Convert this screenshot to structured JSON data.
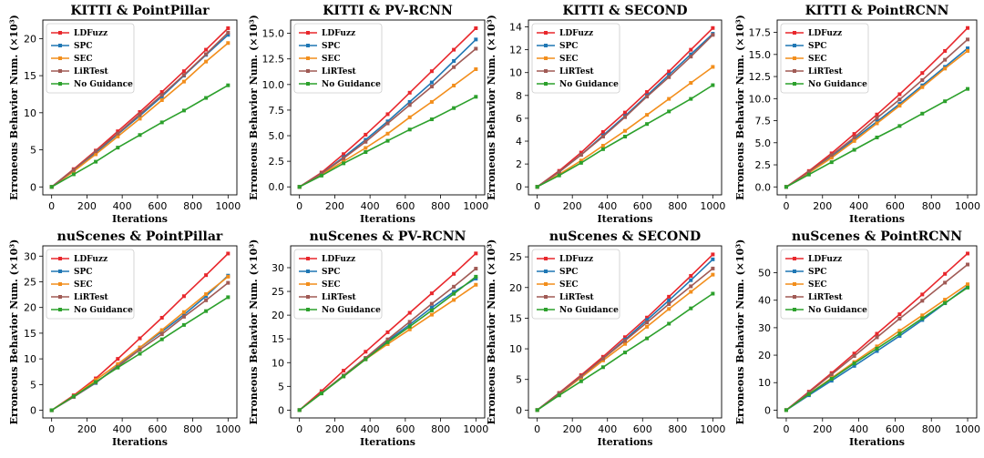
{
  "series_names": [
    "LDFuzz",
    "SPC",
    "SEC",
    "LiRTest",
    "No Guidance"
  ],
  "series_colors": [
    "#e8272c",
    "#1f77b4",
    "#f28e1c",
    "#a05a55",
    "#2ca02c"
  ],
  "chart_data": [
    {
      "type": "line",
      "title": "KITTI & PointPillar",
      "xlabel": "Iterations",
      "ylabel": "Erroneous Behavior Num. (×10³)",
      "x": [
        0,
        125,
        250,
        375,
        500,
        625,
        750,
        875,
        1000
      ],
      "xticks": [
        0,
        200,
        400,
        600,
        800,
        1000
      ],
      "xlim": [
        -50,
        1050
      ],
      "ylim": [
        -1.07,
        22.5
      ],
      "yticks": [
        0,
        5,
        10,
        15,
        20
      ],
      "legend": "top-left",
      "series": [
        {
          "name": "LDFuzz",
          "values": [
            0,
            2.4,
            4.9,
            7.5,
            10.1,
            12.8,
            15.6,
            18.5,
            21.4
          ]
        },
        {
          "name": "SPC",
          "values": [
            0,
            2.3,
            4.6,
            7.1,
            9.6,
            12.2,
            15.0,
            17.8,
            20.5
          ]
        },
        {
          "name": "SEC",
          "values": [
            0,
            2.1,
            4.4,
            6.8,
            9.2,
            11.7,
            14.2,
            16.9,
            19.4
          ]
        },
        {
          "name": "LiRTest",
          "values": [
            0,
            2.3,
            4.8,
            7.2,
            9.8,
            12.4,
            15.1,
            17.9,
            20.8
          ]
        },
        {
          "name": "No Guidance",
          "values": [
            0,
            1.7,
            3.4,
            5.3,
            7.0,
            8.7,
            10.3,
            12.0,
            13.7
          ]
        }
      ]
    },
    {
      "type": "line",
      "title": "KITTI & PV-RCNN",
      "xlabel": "Iterations",
      "ylabel": "Erroneous Behavior Num. (×10³)",
      "x": [
        0,
        125,
        250,
        375,
        500,
        625,
        750,
        875,
        1000
      ],
      "xticks": [
        0,
        200,
        400,
        600,
        800,
        1000
      ],
      "xlim": [
        -50,
        1050
      ],
      "ylim": [
        -0.78,
        16.3
      ],
      "yticks": [
        0.0,
        2.5,
        5.0,
        7.5,
        10.0,
        12.5,
        15.0
      ],
      "legend": "top-left",
      "series": [
        {
          "name": "LDFuzz",
          "values": [
            0,
            1.4,
            3.2,
            5.1,
            7.1,
            9.2,
            11.3,
            13.4,
            15.5
          ]
        },
        {
          "name": "SPC",
          "values": [
            0,
            1.3,
            2.9,
            4.6,
            6.4,
            8.3,
            10.2,
            12.3,
            14.4
          ]
        },
        {
          "name": "SEC",
          "values": [
            0,
            1.2,
            2.5,
            3.8,
            5.2,
            6.8,
            8.3,
            9.9,
            11.5
          ]
        },
        {
          "name": "LiRTest",
          "values": [
            0,
            1.3,
            2.8,
            4.4,
            6.2,
            8.0,
            9.8,
            11.7,
            13.5
          ]
        },
        {
          "name": "No Guidance",
          "values": [
            0,
            1.1,
            2.3,
            3.4,
            4.5,
            5.6,
            6.6,
            7.7,
            8.8
          ]
        }
      ]
    },
    {
      "type": "line",
      "title": "KITTI & SECOND",
      "xlabel": "Iterations",
      "ylabel": "Erroneous Behavior Num. (×10³)",
      "x": [
        0,
        125,
        250,
        375,
        500,
        625,
        750,
        875,
        1000
      ],
      "xticks": [
        0,
        200,
        400,
        600,
        800,
        1000
      ],
      "xlim": [
        -50,
        1050
      ],
      "ylim": [
        -0.7,
        14.6
      ],
      "yticks": [
        0,
        2,
        4,
        6,
        8,
        10,
        12,
        14
      ],
      "legend": "top-left",
      "series": [
        {
          "name": "LDFuzz",
          "values": [
            0,
            1.4,
            3.0,
            4.8,
            6.5,
            8.3,
            10.1,
            12.0,
            13.9
          ]
        },
        {
          "name": "SPC",
          "values": [
            0,
            1.3,
            2.8,
            4.5,
            6.2,
            8.0,
            9.8,
            11.6,
            13.4
          ]
        },
        {
          "name": "SEC",
          "values": [
            0,
            1.1,
            2.3,
            3.6,
            4.9,
            6.3,
            7.7,
            9.1,
            10.5
          ]
        },
        {
          "name": "LiRTest",
          "values": [
            0,
            1.3,
            2.8,
            4.4,
            6.1,
            7.9,
            9.6,
            11.4,
            13.3
          ]
        },
        {
          "name": "No Guidance",
          "values": [
            0,
            1.0,
            2.1,
            3.3,
            4.4,
            5.5,
            6.6,
            7.7,
            8.9
          ]
        }
      ]
    },
    {
      "type": "line",
      "title": "KITTI & PointRCNN",
      "xlabel": "Iterations",
      "ylabel": "Erroneous Behavior Num. (×10³)",
      "x": [
        0,
        125,
        250,
        375,
        500,
        625,
        750,
        875,
        1000
      ],
      "xticks": [
        0,
        200,
        400,
        600,
        800,
        1000
      ],
      "xlim": [
        -50,
        1050
      ],
      "ylim": [
        -0.9,
        18.9
      ],
      "yticks": [
        0.0,
        2.5,
        5.0,
        7.5,
        10.0,
        12.5,
        15.0,
        17.5
      ],
      "legend": "top-left",
      "series": [
        {
          "name": "LDFuzz",
          "values": [
            0,
            1.8,
            3.8,
            6.0,
            8.2,
            10.5,
            12.9,
            15.4,
            18.0
          ]
        },
        {
          "name": "SPC",
          "values": [
            0,
            1.6,
            3.4,
            5.4,
            7.4,
            9.4,
            11.5,
            13.6,
            15.7
          ]
        },
        {
          "name": "SEC",
          "values": [
            0,
            1.6,
            3.3,
            5.2,
            7.2,
            9.2,
            11.3,
            13.4,
            15.4
          ]
        },
        {
          "name": "LiRTest",
          "values": [
            0,
            1.7,
            3.6,
            5.6,
            7.8,
            9.9,
            12.1,
            14.4,
            16.7
          ]
        },
        {
          "name": "No Guidance",
          "values": [
            0,
            1.4,
            2.8,
            4.2,
            5.6,
            6.9,
            8.3,
            9.7,
            11.1
          ]
        }
      ]
    },
    {
      "type": "line",
      "title": "nuScenes & PointPillar",
      "xlabel": "Iterations",
      "ylabel": "Erroneous Behavior Num. (×10³)",
      "x": [
        0,
        125,
        250,
        375,
        500,
        625,
        750,
        875,
        1000
      ],
      "xticks": [
        0,
        200,
        400,
        600,
        800,
        1000
      ],
      "xlim": [
        -50,
        1050
      ],
      "ylim": [
        -1.5,
        32.0
      ],
      "yticks": [
        0,
        5,
        10,
        15,
        20,
        25,
        30
      ],
      "legend": "top-left",
      "series": [
        {
          "name": "LDFuzz",
          "values": [
            0,
            2.9,
            6.2,
            10.0,
            14.0,
            18.0,
            22.2,
            26.3,
            30.5
          ]
        },
        {
          "name": "SPC",
          "values": [
            0,
            2.6,
            5.3,
            8.7,
            12.2,
            15.3,
            18.6,
            22.2,
            26.2
          ]
        },
        {
          "name": "SEC",
          "values": [
            0,
            2.7,
            5.9,
            9.0,
            12.2,
            15.6,
            19.1,
            22.6,
            26.0
          ]
        },
        {
          "name": "LiRTest",
          "values": [
            0,
            2.6,
            5.4,
            8.5,
            11.8,
            14.8,
            18.2,
            21.4,
            24.8
          ]
        },
        {
          "name": "No Guidance",
          "values": [
            0,
            2.7,
            5.5,
            8.3,
            11.0,
            13.8,
            16.6,
            19.3,
            22.0
          ]
        }
      ]
    },
    {
      "type": "line",
      "title": "nuScenes & PV-RCNN",
      "xlabel": "Iterations",
      "ylabel": "Erroneous Behavior Num. (×10³)",
      "x": [
        0,
        125,
        250,
        375,
        500,
        625,
        750,
        875,
        1000
      ],
      "xticks": [
        0,
        200,
        400,
        600,
        800,
        1000
      ],
      "xlim": [
        -50,
        1050
      ],
      "ylim": [
        -1.65,
        34.6
      ],
      "yticks": [
        0,
        5,
        10,
        15,
        20,
        25,
        30
      ],
      "legend": "top-left",
      "series": [
        {
          "name": "LDFuzz",
          "values": [
            0,
            4.0,
            8.3,
            12.3,
            16.4,
            20.5,
            24.6,
            28.7,
            33.0
          ]
        },
        {
          "name": "SPC",
          "values": [
            0,
            3.6,
            7.2,
            10.9,
            14.6,
            18.0,
            21.6,
            24.9,
            27.7
          ]
        },
        {
          "name": "SEC",
          "values": [
            0,
            3.6,
            7.1,
            10.7,
            13.9,
            17.0,
            20.1,
            23.2,
            26.4
          ]
        },
        {
          "name": "LiRTest",
          "values": [
            0,
            3.6,
            7.3,
            11.0,
            14.9,
            18.6,
            22.4,
            26.0,
            29.8
          ]
        },
        {
          "name": "No Guidance",
          "values": [
            0,
            3.5,
            7.1,
            10.7,
            14.3,
            17.6,
            21.0,
            24.5,
            28.1
          ]
        }
      ]
    },
    {
      "type": "line",
      "title": "nuScenes & SECOND",
      "xlabel": "Iterations",
      "ylabel": "Erroneous Behavior Num. (×10³)",
      "x": [
        0,
        125,
        250,
        375,
        500,
        625,
        750,
        875,
        1000
      ],
      "xticks": [
        0,
        200,
        400,
        600,
        800,
        1000
      ],
      "xlim": [
        -50,
        1050
      ],
      "ylim": [
        -1.28,
        26.8
      ],
      "yticks": [
        0,
        5,
        10,
        15,
        20,
        25
      ],
      "legend": "top-left",
      "series": [
        {
          "name": "LDFuzz",
          "values": [
            0,
            2.8,
            5.7,
            8.7,
            11.9,
            15.1,
            18.5,
            21.9,
            25.4
          ]
        },
        {
          "name": "SPC",
          "values": [
            0,
            2.7,
            5.5,
            8.4,
            11.5,
            14.7,
            17.9,
            21.2,
            24.6
          ]
        },
        {
          "name": "SEC",
          "values": [
            0,
            2.6,
            5.3,
            8.1,
            10.8,
            13.6,
            16.5,
            19.3,
            22.1
          ]
        },
        {
          "name": "LiRTest",
          "values": [
            0,
            2.7,
            5.5,
            8.4,
            11.3,
            14.3,
            17.3,
            20.2,
            23.1
          ]
        },
        {
          "name": "No Guidance",
          "values": [
            0,
            2.4,
            4.7,
            7.0,
            9.4,
            11.7,
            14.1,
            16.6,
            19.0
          ]
        }
      ]
    },
    {
      "type": "line",
      "title": "nuScenes & PointRCNN",
      "xlabel": "Iterations",
      "ylabel": "Erroneous Behavior Num. (×10³)",
      "x": [
        0,
        125,
        250,
        375,
        500,
        625,
        750,
        875,
        1000
      ],
      "xticks": [
        0,
        200,
        400,
        600,
        800,
        1000
      ],
      "xlim": [
        -50,
        1050
      ],
      "ylim": [
        -2.85,
        59.8
      ],
      "yticks": [
        0,
        10,
        20,
        30,
        40,
        50
      ],
      "legend": "top-left",
      "series": [
        {
          "name": "LDFuzz",
          "values": [
            0,
            6.7,
            13.5,
            20.6,
            27.8,
            34.9,
            42.1,
            49.6,
            57.0
          ]
        },
        {
          "name": "SPC",
          "values": [
            0,
            5.4,
            10.7,
            16.1,
            21.5,
            27.0,
            32.8,
            38.9,
            45.0
          ]
        },
        {
          "name": "SEC",
          "values": [
            0,
            5.8,
            11.7,
            17.5,
            23.2,
            28.9,
            34.5,
            40.2,
            45.8
          ]
        },
        {
          "name": "LiRTest",
          "values": [
            0,
            6.4,
            13.0,
            19.7,
            26.5,
            33.3,
            39.8,
            46.4,
            53.0
          ]
        },
        {
          "name": "No Guidance",
          "values": [
            0,
            5.8,
            11.4,
            17.0,
            22.4,
            27.8,
            33.4,
            39.0,
            44.6
          ]
        }
      ]
    }
  ]
}
